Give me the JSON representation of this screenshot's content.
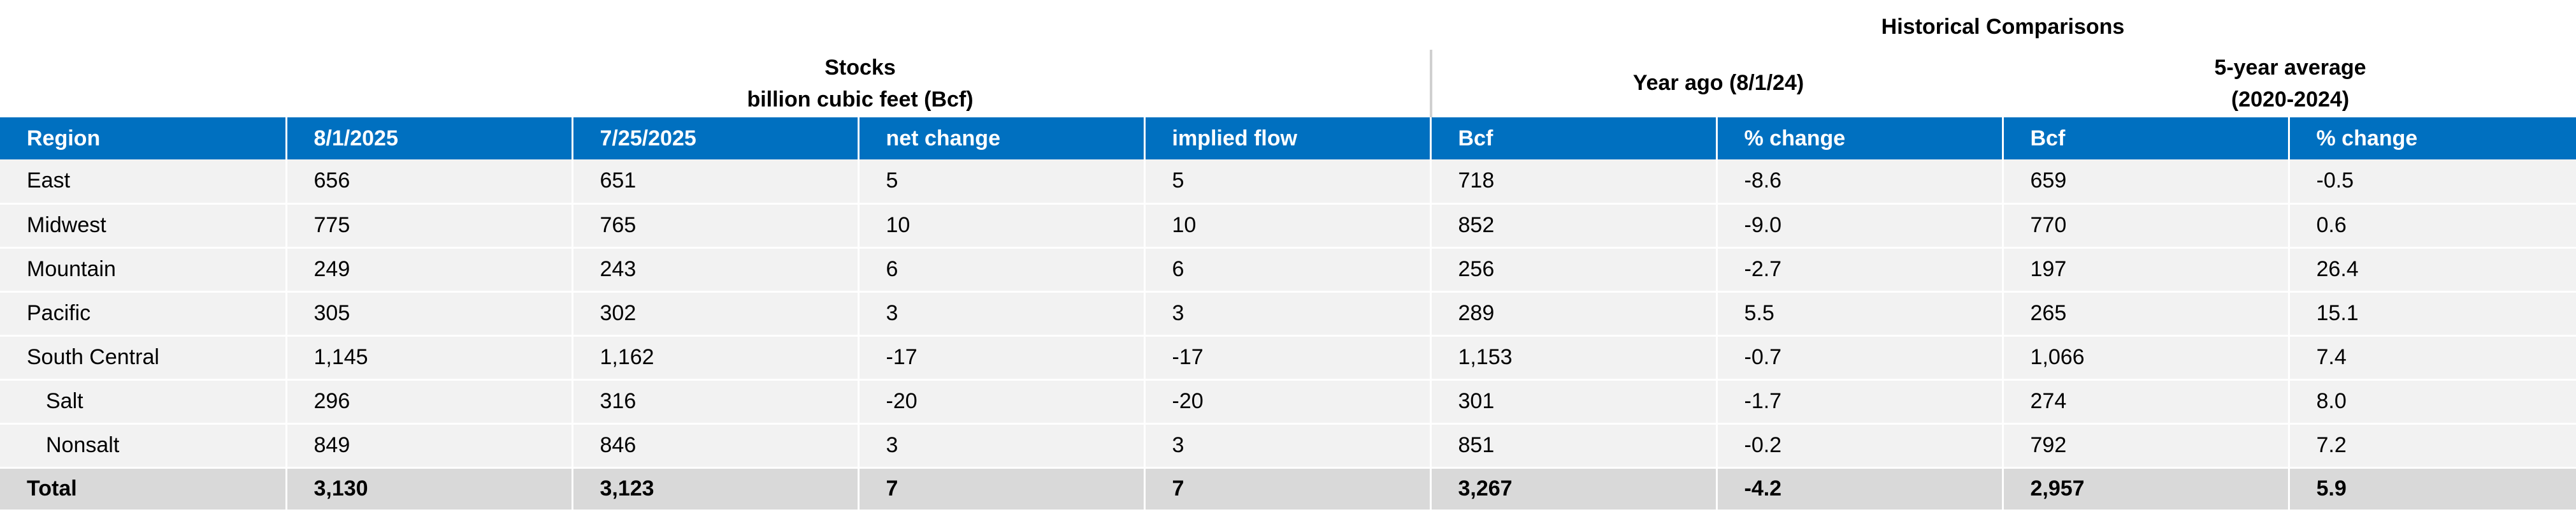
{
  "header": {
    "historical_title": "Historical Comparisons",
    "stocks_title": "Stocks",
    "stocks_subtitle": "billion cubic feet (Bcf)",
    "year_ago_title": "Year ago (8/1/24)",
    "five_year_title": "5-year average",
    "five_year_subtitle": "(2020-2024)"
  },
  "table": {
    "columns": [
      "Region",
      "8/1/2025",
      "7/25/2025",
      "net change",
      "implied flow",
      "Bcf",
      "% change",
      "Bcf",
      "% change"
    ],
    "rows": [
      {
        "region": "East",
        "stocks_current": "656",
        "stocks_prior": "651",
        "net_change": "5",
        "implied_flow": "5",
        "year_ago_bcf": "718",
        "year_ago_pct": "-8.6",
        "five_year_bcf": "659",
        "five_year_pct": "-0.5"
      },
      {
        "region": "Midwest",
        "stocks_current": "775",
        "stocks_prior": "765",
        "net_change": "10",
        "implied_flow": "10",
        "year_ago_bcf": "852",
        "year_ago_pct": "-9.0",
        "five_year_bcf": "770",
        "five_year_pct": "0.6"
      },
      {
        "region": "Mountain",
        "stocks_current": "249",
        "stocks_prior": "243",
        "net_change": "6",
        "implied_flow": "6",
        "year_ago_bcf": "256",
        "year_ago_pct": "-2.7",
        "five_year_bcf": "197",
        "five_year_pct": "26.4"
      },
      {
        "region": "Pacific",
        "stocks_current": "305",
        "stocks_prior": "302",
        "net_change": "3",
        "implied_flow": "3",
        "year_ago_bcf": "289",
        "year_ago_pct": "5.5",
        "five_year_bcf": "265",
        "five_year_pct": "15.1"
      },
      {
        "region": "South Central",
        "stocks_current": "1,145",
        "stocks_prior": "1,162",
        "net_change": "-17",
        "implied_flow": "-17",
        "year_ago_bcf": "1,153",
        "year_ago_pct": "-0.7",
        "five_year_bcf": "1,066",
        "five_year_pct": "7.4"
      },
      {
        "region": "Salt",
        "stocks_current": "296",
        "stocks_prior": "316",
        "net_change": "-20",
        "implied_flow": "-20",
        "year_ago_bcf": "301",
        "year_ago_pct": "-1.7",
        "five_year_bcf": "274",
        "five_year_pct": "8.0"
      },
      {
        "region": "Nonsalt",
        "stocks_current": "849",
        "stocks_prior": "846",
        "net_change": "3",
        "implied_flow": "3",
        "year_ago_bcf": "851",
        "year_ago_pct": "-0.2",
        "five_year_bcf": "792",
        "five_year_pct": "7.2"
      }
    ],
    "total": {
      "region": "Total",
      "stocks_current": "3,130",
      "stocks_prior": "3,123",
      "net_change": "7",
      "implied_flow": "7",
      "year_ago_bcf": "3,267",
      "year_ago_pct": "-4.2",
      "five_year_bcf": "2,957",
      "five_year_pct": "5.9"
    }
  },
  "colors": {
    "header_fill": "#0070c0",
    "row_fill": "#f2f2f2",
    "total_fill": "#d9d9d9"
  }
}
